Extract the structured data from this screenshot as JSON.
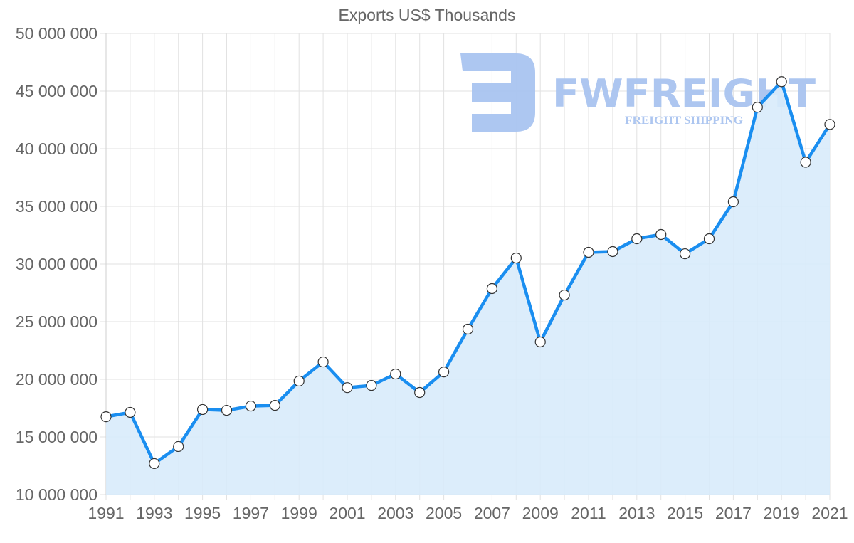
{
  "chart_data": {
    "type": "area",
    "title": "Exports US$ Thousands",
    "xlabel": "",
    "ylabel": "",
    "x": [
      1991,
      1992,
      1993,
      1994,
      1995,
      1996,
      1997,
      1998,
      1999,
      2000,
      2001,
      2002,
      2003,
      2004,
      2005,
      2006,
      2007,
      2008,
      2009,
      2010,
      2011,
      2012,
      2013,
      2014,
      2015,
      2016,
      2017,
      2018,
      2019,
      2020,
      2021
    ],
    "series": [
      {
        "name": "Exports US$ Thousands",
        "values": [
          16750000,
          17130000,
          12690000,
          14170000,
          17380000,
          17310000,
          17680000,
          17740000,
          19850000,
          21510000,
          19280000,
          19470000,
          20460000,
          18860000,
          20640000,
          24350000,
          27870000,
          30520000,
          23240000,
          27310000,
          31020000,
          31080000,
          32190000,
          32560000,
          30890000,
          32190000,
          35400000,
          43600000,
          45820000,
          38830000,
          42110000
        ]
      }
    ],
    "ylim": [
      10000000,
      50000000
    ],
    "y_ticks": [
      "50 000 000",
      "45 000 000",
      "40 000 000",
      "35 000 000",
      "30 000 000",
      "25 000 000",
      "20 000 000",
      "15 000 000",
      "10 000 000"
    ],
    "x_ticks": [
      "1991",
      "1993",
      "1995",
      "1997",
      "1999",
      "2001",
      "2003",
      "2005",
      "2007",
      "2009",
      "2011",
      "2013",
      "2015",
      "2017",
      "2019",
      "2021"
    ],
    "grid": true,
    "legend": "none",
    "colors": {
      "line": "#1a8ef0",
      "fill": "#d8ebfb",
      "point_fill": "#ffffff",
      "point_stroke": "#333333",
      "grid": "#e2e2e2"
    }
  },
  "watermark": {
    "brand": "FWFREIGHT",
    "tagline": "FREIGHT SHIPPING",
    "color": "#a9c4f0"
  }
}
